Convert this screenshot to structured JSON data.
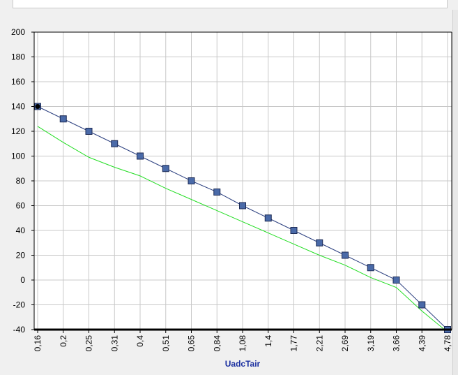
{
  "chart_data": {
    "type": "line",
    "title": "",
    "xlabel": "UadcTair",
    "ylabel": "",
    "categories": [
      "0,16",
      "0,2",
      "0,25",
      "0,31",
      "0,4",
      "0,51",
      "0,65",
      "0,84",
      "1,08",
      "1,4",
      "1,77",
      "2,21",
      "2,69",
      "3,19",
      "3,66",
      "4,39",
      "4,78"
    ],
    "ylim": [
      -40,
      200
    ],
    "yticks": [
      200,
      180,
      160,
      140,
      120,
      100,
      80,
      60,
      40,
      20,
      0,
      -20,
      -40
    ],
    "grid": true,
    "series": [
      {
        "color": "#2b3f7f",
        "marker_color": "#4a6aa8",
        "marker": "square",
        "values": [
          140,
          130,
          120,
          110,
          100,
          90,
          80,
          71,
          60,
          50,
          40,
          30,
          20,
          10,
          0,
          -20,
          -40
        ]
      },
      {
        "color": "#22dd22",
        "marker": "none",
        "values": [
          124,
          111,
          99,
          91,
          84,
          74,
          65,
          56,
          47,
          38,
          29,
          20,
          12,
          2,
          -6,
          -25,
          -42
        ]
      }
    ]
  }
}
